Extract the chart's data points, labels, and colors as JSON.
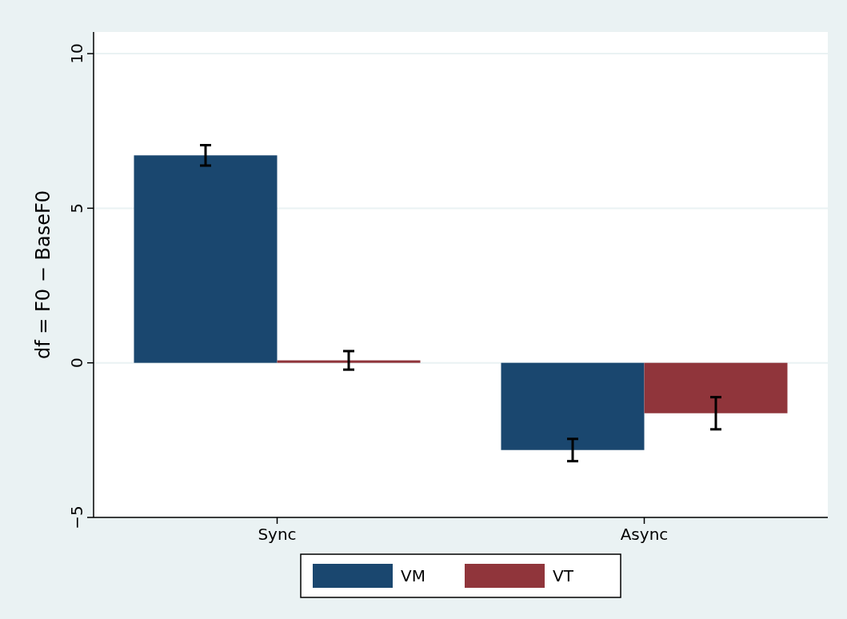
{
  "chart_data": {
    "type": "bar",
    "ylabel": "df = F0 − BaseF0",
    "categories": [
      "Sync",
      "Async"
    ],
    "series": [
      {
        "name": "VM",
        "color": "#1a476f",
        "values": [
          6.71,
          -2.82
        ],
        "errors": [
          0.33,
          0.36
        ]
      },
      {
        "name": "VT",
        "color": "#90353b",
        "values": [
          0.08,
          -1.63
        ],
        "errors": [
          0.3,
          0.52
        ]
      }
    ],
    "ylim": [
      -5,
      10.7
    ],
    "yticks": [
      -5,
      0,
      5,
      10
    ],
    "grid": "y",
    "legend": "bottom"
  }
}
